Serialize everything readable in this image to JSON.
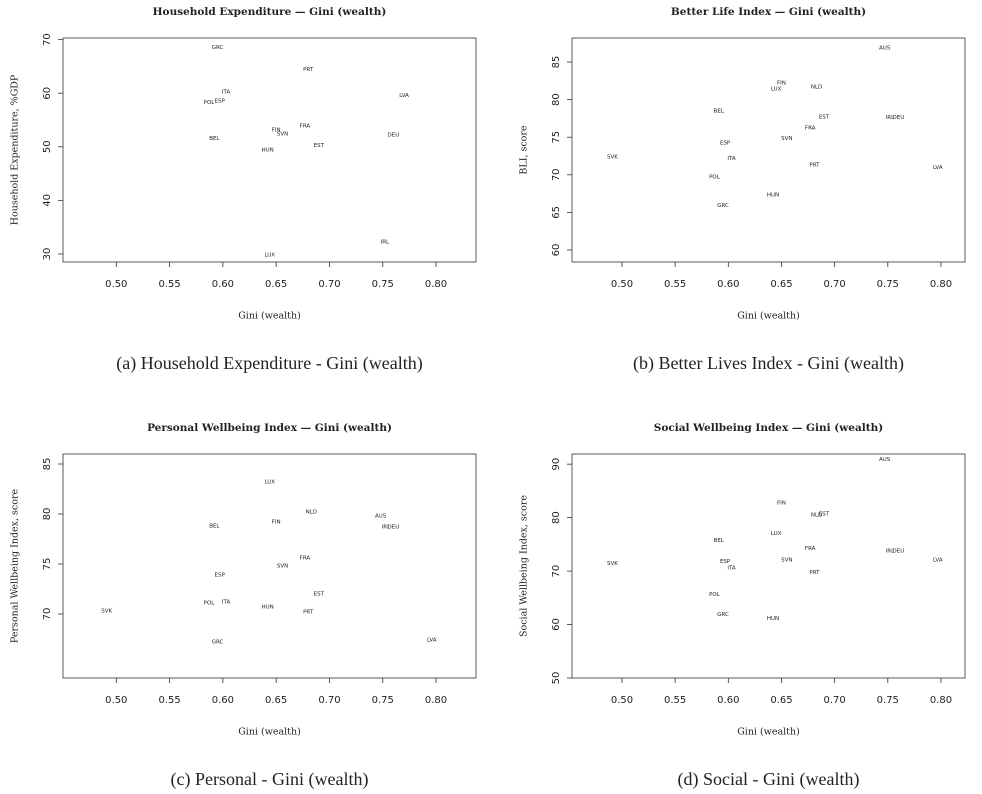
{
  "chart_data": [
    {
      "type": "scatter",
      "title": "Household Expenditure — Gini (wealth)",
      "xlabel": "Gini (wealth)",
      "ylabel": "Household Expenditure, %GDP",
      "caption": "(a) Household Expenditure - Gini (wealth)",
      "labels": [
        "GRC",
        "PRT",
        "ITA",
        "POL",
        "ESP",
        "LVA",
        "FRA",
        "FIN",
        "SVN",
        "DEU",
        "BEL",
        "EST",
        "HUN",
        "IRL",
        "LUX"
      ],
      "x": [
        0.595,
        0.68,
        0.603,
        0.587,
        0.597,
        0.77,
        0.677,
        0.65,
        0.656,
        0.76,
        0.592,
        0.69,
        0.642,
        0.752,
        0.644
      ],
      "y": [
        68.5,
        64.4,
        60.2,
        58.3,
        58.5,
        59.6,
        53.9,
        53.1,
        52.4,
        52.2,
        51.5,
        50.2,
        49.4,
        32.2,
        29.8
      ],
      "xlim": [
        0.45,
        0.8375
      ],
      "ylim": [
        28.5,
        70.3
      ],
      "xticks": [
        {
          "value": 0.5,
          "label": "0.50"
        },
        {
          "value": 0.55,
          "label": "0.55"
        },
        {
          "value": 0.6,
          "label": "0.60"
        },
        {
          "value": 0.65,
          "label": "0.65"
        },
        {
          "value": 0.7,
          "label": "0.70"
        },
        {
          "value": 0.75,
          "label": "0.75"
        },
        {
          "value": 0.8,
          "label": "0.80"
        }
      ],
      "yticks": [
        30,
        40,
        50,
        60,
        70
      ]
    },
    {
      "type": "scatter",
      "title": "Better Life Index — Gini (wealth)",
      "xlabel": "Gini (wealth)",
      "ylabel": "BLI, score",
      "caption": "(b) Better Lives Index - Gini (wealth)",
      "labels": [
        "AUS",
        "FIN",
        "LUX",
        "NLD",
        "BEL",
        "EST",
        "IRL",
        "DEU",
        "FRA",
        "SVN",
        "ESP",
        "SVK",
        "ITA",
        "PRT",
        "LVA",
        "POL",
        "HUN",
        "GRC"
      ],
      "x": [
        0.747,
        0.65,
        0.645,
        0.683,
        0.591,
        0.69,
        0.752,
        0.76,
        0.677,
        0.655,
        0.597,
        0.491,
        0.603,
        0.681,
        0.797,
        0.587,
        0.642,
        0.595
      ],
      "y": [
        86.9,
        82.2,
        81.4,
        81.7,
        78.5,
        77.7,
        77.6,
        77.6,
        76.2,
        74.8,
        74.2,
        72.4,
        72.2,
        71.3,
        71.0,
        69.7,
        67.3,
        65.9
      ],
      "xlim": [
        0.453,
        0.8226
      ],
      "ylim": [
        58.4,
        88.2
      ],
      "xticks": [
        {
          "value": 0.5,
          "label": "0.50"
        },
        {
          "value": 0.55,
          "label": "0.55"
        },
        {
          "value": 0.6,
          "label": "0.60"
        },
        {
          "value": 0.65,
          "label": "0.65"
        },
        {
          "value": 0.7,
          "label": "0.70"
        },
        {
          "value": 0.75,
          "label": "0.75"
        },
        {
          "value": 0.8,
          "label": "0.80"
        }
      ],
      "yticks": [
        60,
        65,
        70,
        75,
        80,
        85
      ]
    },
    {
      "type": "scatter",
      "title": "Personal Wellbeing Index — Gini (wealth)",
      "xlabel": "Gini (wealth)",
      "ylabel": "Personal Wellbeing Index, score",
      "caption": "(c) Personal - Gini (wealth)",
      "labels": [
        "LUX",
        "NLD",
        "AUS",
        "FIN",
        "BEL",
        "IRL",
        "DEU",
        "FRA",
        "SVN",
        "ESP",
        "EST",
        "POL",
        "ITA",
        "HUN",
        "SVK",
        "PRT",
        "GRC",
        "LVA"
      ],
      "x": [
        0.644,
        0.683,
        0.748,
        0.65,
        0.592,
        0.753,
        0.76,
        0.677,
        0.656,
        0.597,
        0.69,
        0.587,
        0.603,
        0.642,
        0.491,
        0.68,
        0.595,
        0.796
      ],
      "y": [
        83.2,
        80.2,
        79.8,
        79.2,
        78.8,
        78.7,
        78.7,
        75.6,
        74.8,
        73.9,
        72.0,
        71.1,
        71.2,
        70.7,
        70.3,
        70.2,
        67.2,
        67.4
      ],
      "xlim": [
        0.45,
        0.8375
      ],
      "ylim": [
        63.6,
        86
      ],
      "xticks": [
        {
          "value": 0.5,
          "label": "0.50"
        },
        {
          "value": 0.55,
          "label": "0.55"
        },
        {
          "value": 0.6,
          "label": "0.60"
        },
        {
          "value": 0.65,
          "label": "0.65"
        },
        {
          "value": 0.7,
          "label": "0.70"
        },
        {
          "value": 0.75,
          "label": "0.75"
        },
        {
          "value": 0.8,
          "label": "0.80"
        }
      ],
      "yticks": [
        70,
        75,
        80,
        85
      ]
    },
    {
      "type": "scatter",
      "title": "Social Wellbeing Index — Gini (wealth)",
      "xlabel": "Gini (wealth)",
      "ylabel": "Social Wellbeing Index, score",
      "caption": "(d) Social - Gini (wealth)",
      "labels": [
        "AUS",
        "FIN",
        "NLD",
        "EST",
        "LUX",
        "BEL",
        "FRA",
        "IRL",
        "DEU",
        "LVA",
        "SVN",
        "ESP",
        "SVK",
        "ITA",
        "PRT",
        "POL",
        "GRC",
        "HUN"
      ],
      "x": [
        0.747,
        0.65,
        0.683,
        0.69,
        0.645,
        0.591,
        0.677,
        0.752,
        0.76,
        0.797,
        0.655,
        0.597,
        0.491,
        0.603,
        0.681,
        0.587,
        0.595,
        0.642
      ],
      "y": [
        90.9,
        82.7,
        80.5,
        80.7,
        77.0,
        75.7,
        74.2,
        73.8,
        73.8,
        72.1,
        72.1,
        71.8,
        71.4,
        70.6,
        69.7,
        65.6,
        61.9,
        61.1
      ],
      "xlim": [
        0.453,
        0.8226
      ],
      "ylim": [
        50,
        91.9
      ],
      "xticks": [
        {
          "value": 0.5,
          "label": "0.50"
        },
        {
          "value": 0.55,
          "label": "0.55"
        },
        {
          "value": 0.6,
          "label": "0.60"
        },
        {
          "value": 0.65,
          "label": "0.65"
        },
        {
          "value": 0.7,
          "label": "0.70"
        },
        {
          "value": 0.75,
          "label": "0.75"
        },
        {
          "value": 0.8,
          "label": "0.80"
        }
      ],
      "yticks": [
        50,
        60,
        70,
        80,
        90
      ]
    }
  ]
}
